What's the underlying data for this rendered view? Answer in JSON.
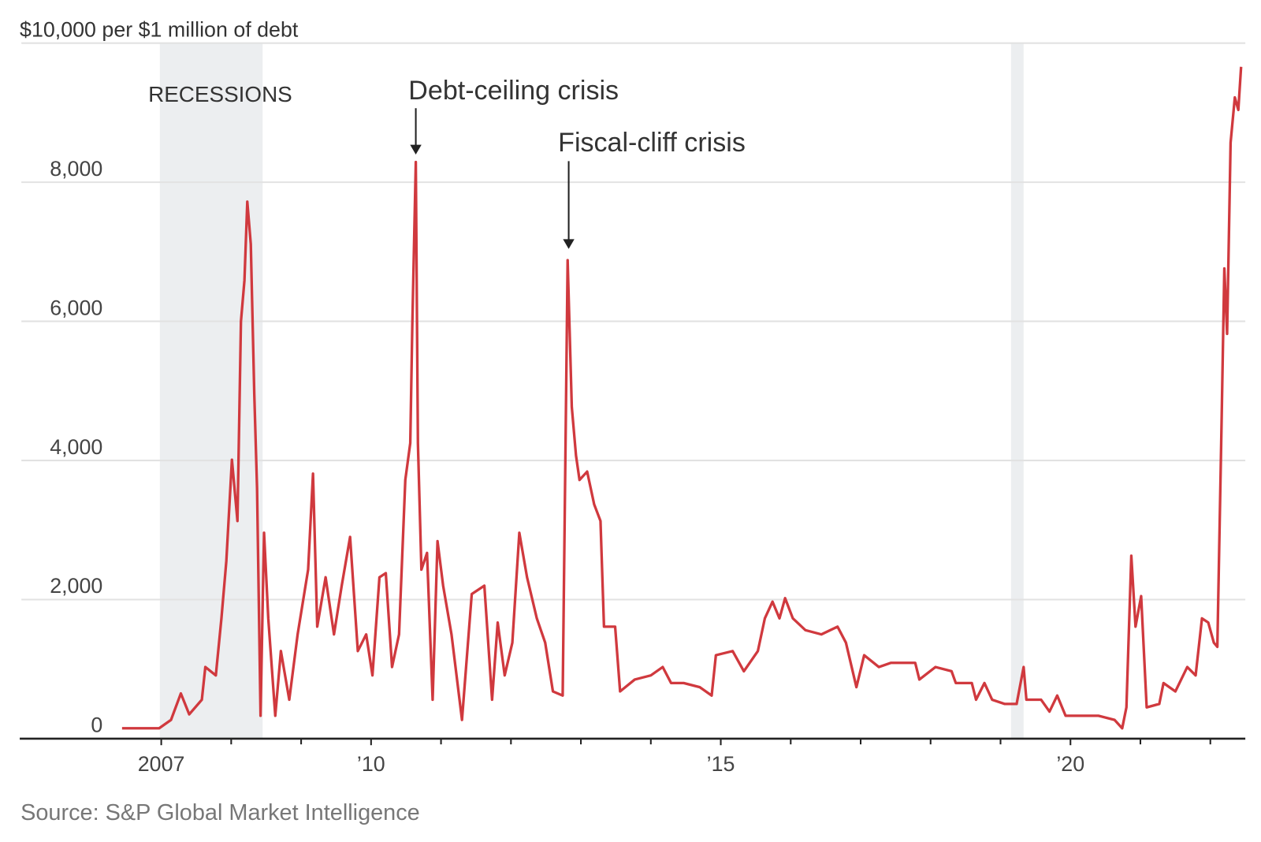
{
  "chart_data": {
    "type": "line",
    "source": "Source: S&P Global Market Intelligence",
    "annotations": [
      "RECESSIONS",
      "Debt-ceiling crisis",
      "Fiscal-cliff crisis"
    ],
    "recessions": [
      [
        2006.98,
        2008.45
      ],
      [
        2019.15,
        2019.33
      ]
    ],
    "xlim": [
      2005,
      2022.5
    ],
    "xticks": [
      {
        "value": 2007,
        "label": "2007"
      },
      {
        "value": 2010,
        "label": "’10"
      },
      {
        "value": 2015,
        "label": "’15"
      },
      {
        "value": 2020,
        "label": "’20"
      }
    ],
    "minor_xticks": [
      2008,
      2009,
      2011,
      2012,
      2013,
      2014,
      2016,
      2017,
      2018,
      2019,
      2021,
      2022
    ],
    "ylim": [
      0,
      10000
    ],
    "yticks": [
      0,
      {
        "value": 2000,
        "label": "2,000"
      },
      {
        "value": 4000,
        "label": "4,000"
      },
      {
        "value": 6000,
        "label": "6,000"
      },
      {
        "value": 8000,
        "label": "8,000"
      },
      {
        "value": 10000,
        "label": "$10,000 per $1 million of debt"
      }
    ],
    "grid": true,
    "series": [
      {
        "color": "#d0393e",
        "x": [
          2006.44,
          2006.97,
          2007.14,
          2007.28,
          2007.4,
          2007.58,
          2007.63,
          2007.78,
          2007.86,
          2007.93,
          2008.01,
          2008.09,
          2008.14,
          2008.19,
          2008.23,
          2008.28,
          2008.33,
          2008.37,
          2008.42,
          2008.47,
          2008.53,
          2008.63,
          2008.71,
          2008.83,
          2008.95,
          2009.1,
          2009.17,
          2009.23,
          2009.35,
          2009.47,
          2009.58,
          2009.7,
          2009.81,
          2009.93,
          2010.02,
          2010.12,
          2010.21,
          2010.3,
          2010.4,
          2010.49,
          2010.56,
          2010.59,
          2010.64,
          2010.67,
          2010.72,
          2010.8,
          2010.88,
          2010.95,
          2011.03,
          2011.15,
          2011.3,
          2011.44,
          2011.62,
          2011.73,
          2011.81,
          2011.91,
          2012.02,
          2012.12,
          2012.23,
          2012.37,
          2012.49,
          2012.6,
          2012.74,
          2012.81,
          2012.87,
          2012.93,
          2012.98,
          2013.09,
          2013.19,
          2013.28,
          2013.33,
          2013.49,
          2013.56,
          2013.77,
          2014.0,
          2014.17,
          2014.29,
          2014.47,
          2014.7,
          2014.87,
          2014.93,
          2015.17,
          2015.33,
          2015.53,
          2015.63,
          2015.74,
          2015.84,
          2015.92,
          2016.03,
          2016.21,
          2016.44,
          2016.67,
          2016.79,
          2016.94,
          2017.05,
          2017.26,
          2017.43,
          2017.78,
          2017.84,
          2018.07,
          2018.3,
          2018.36,
          2018.59,
          2018.65,
          2018.77,
          2018.88,
          2019.06,
          2019.23,
          2019.33,
          2019.37,
          2019.58,
          2019.7,
          2019.81,
          2019.93,
          2020.16,
          2020.4,
          2020.63,
          2020.74,
          2020.8,
          2020.87,
          2020.93,
          2021.01,
          2021.09,
          2021.27,
          2021.33,
          2021.5,
          2021.67,
          2021.79,
          2021.88,
          2021.97,
          2022.05,
          2022.1,
          2022.16,
          2022.2,
          2022.24,
          2022.29,
          2022.35,
          2022.4,
          2022.44
        ],
        "values": [
          150,
          150,
          270,
          650,
          350,
          560,
          1030,
          910,
          1730,
          2550,
          4010,
          3130,
          6000,
          6590,
          7720,
          7110,
          4950,
          3600,
          330,
          2960,
          1730,
          330,
          1260,
          560,
          1500,
          2430,
          3810,
          1610,
          2320,
          1500,
          2200,
          2900,
          1260,
          1500,
          910,
          2320,
          2380,
          1030,
          1500,
          3720,
          4250,
          5940,
          8290,
          4250,
          2430,
          2670,
          560,
          2840,
          2200,
          1500,
          270,
          2080,
          2200,
          560,
          1670,
          910,
          1380,
          2960,
          2320,
          1730,
          1380,
          680,
          620,
          6880,
          4770,
          4070,
          3720,
          3840,
          3370,
          3130,
          1610,
          1610,
          680,
          850,
          910,
          1030,
          800,
          800,
          740,
          620,
          1200,
          1260,
          970,
          1260,
          1730,
          1970,
          1730,
          2020,
          1730,
          1560,
          1500,
          1610,
          1380,
          740,
          1200,
          1030,
          1090,
          1090,
          850,
          1030,
          970,
          800,
          800,
          560,
          800,
          560,
          500,
          500,
          1030,
          560,
          560,
          390,
          620,
          330,
          330,
          330,
          270,
          150,
          450,
          2630,
          1610,
          2050,
          450,
          500,
          800,
          680,
          1030,
          910,
          1730,
          1670,
          1380,
          1320,
          4540,
          6760,
          5820,
          8570,
          9220,
          9040,
          9660
        ]
      }
    ]
  }
}
